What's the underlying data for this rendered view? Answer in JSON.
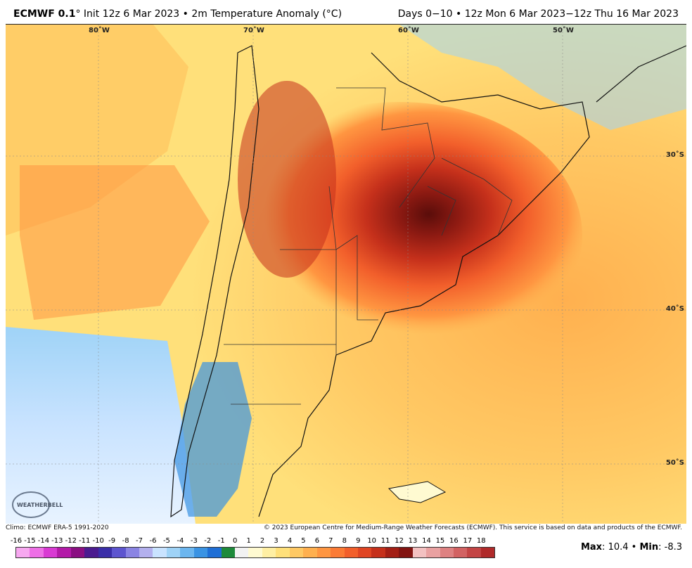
{
  "header": {
    "model": "ECMWF 0.1",
    "deg": "°",
    "init": " Init 12z 6 Mar 2023 • 2m Temperature Anomaly (°C)",
    "range": "Days 0−10 • 12z Mon 6 Mar 2023−12z Thu 16 Mar 2023"
  },
  "map": {
    "lon_labels": [
      "80˚W",
      "70˚W",
      "60˚W",
      "50˚W"
    ],
    "lat_labels": [
      "30˚S",
      "40˚S",
      "50˚S"
    ],
    "logo_text": "WEATHERBELL"
  },
  "footer": {
    "climo": "Climo: ECMWF ERA-5 1991-2020",
    "copyright": "© 2023 European Centre for Medium-Range Weather Forecasts (ECMWF). This service is based on data and products of the ECMWF."
  },
  "colorbar": {
    "labels": [
      "-16",
      "-15",
      "-14",
      "-13",
      "-12",
      "-11",
      "-10",
      "-9",
      "-8",
      "-7",
      "-6",
      "-5",
      "-4",
      "-3",
      "-2",
      "-1",
      "0",
      "1",
      "2",
      "3",
      "4",
      "5",
      "6",
      "7",
      "8",
      "9",
      "10",
      "11",
      "12",
      "13",
      "14",
      "15",
      "16",
      "17",
      "18"
    ],
    "colors": [
      "#f7a8f0",
      "#ee6fe6",
      "#d93ad3",
      "#b31aa8",
      "#8a0f82",
      "#4b1b8f",
      "#3a2ea8",
      "#5d55cf",
      "#8a84e3",
      "#b3b0ee",
      "#c9e3ff",
      "#9fd3f7",
      "#6cb6ef",
      "#3a93e3",
      "#1f6fd6",
      "#1d8a3a",
      "#f2f2f2",
      "#fffad1",
      "#ffefa3",
      "#ffe07a",
      "#ffc964",
      "#ffb04f",
      "#ff9641",
      "#fb7b35",
      "#f25f2b",
      "#e04523",
      "#c5301b",
      "#a31f15",
      "#821411",
      "#f3c1c1",
      "#e9a1a1",
      "#de8181",
      "#d26262",
      "#c34444",
      "#b02a2a"
    ],
    "maxmin_max_label": "Max",
    "maxmin_max": "10.4",
    "maxmin_sep": " • ",
    "maxmin_min_label": "Min",
    "maxmin_min": "-8.3"
  }
}
